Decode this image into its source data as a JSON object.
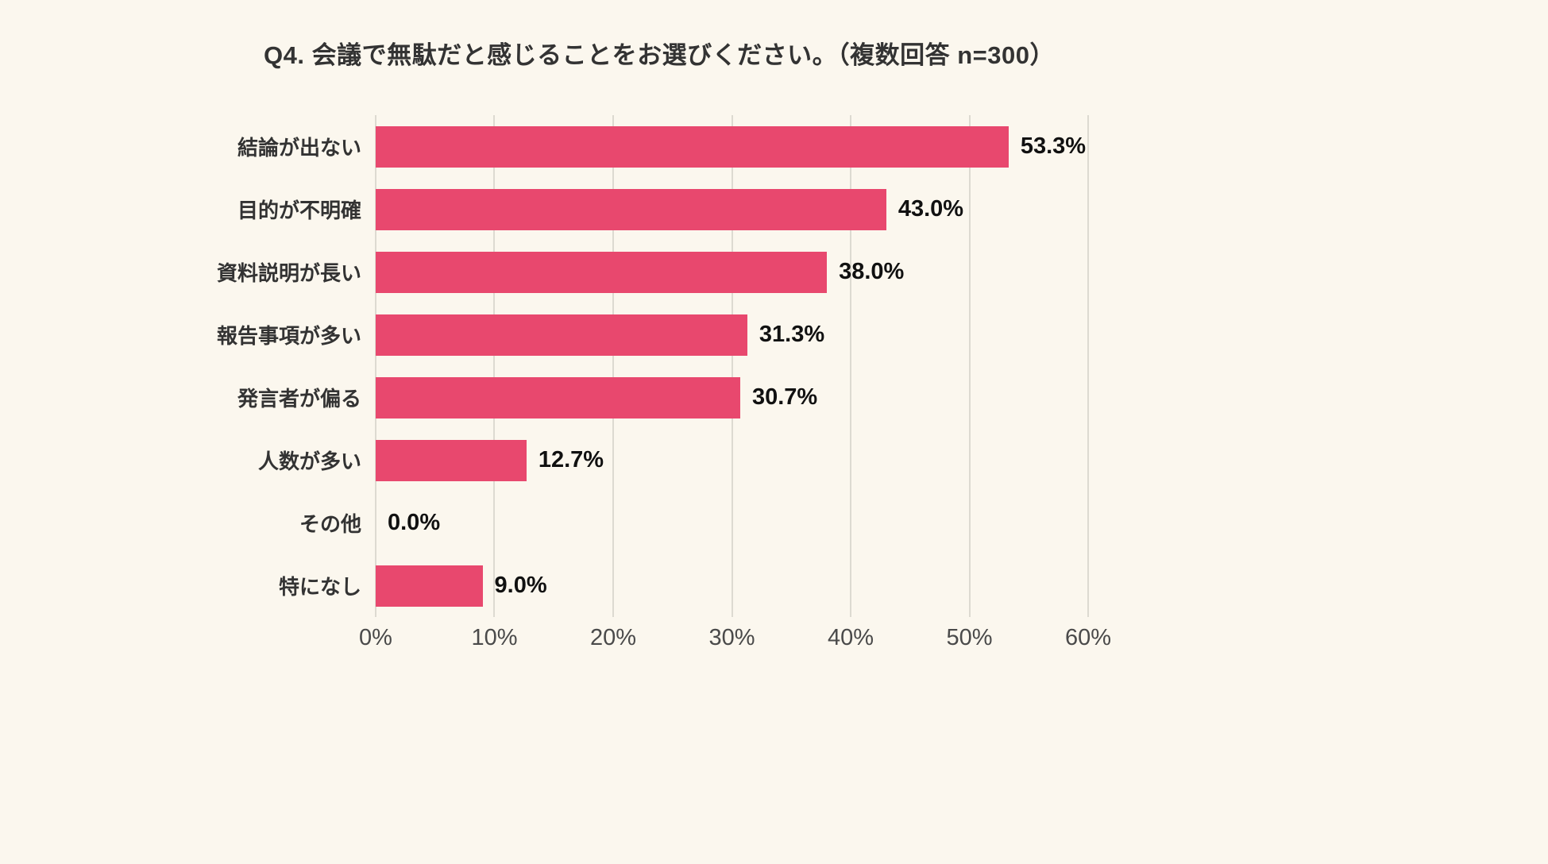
{
  "chart_data": {
    "type": "bar",
    "orientation": "horizontal",
    "title": "Q4. 会議で無駄だと感じることをお選びください。（複数回答 n=300）",
    "categories": [
      "結論が出ない",
      "目的が不明確",
      "資料説明が長い",
      "報告事項が多い",
      "発言者が偏る",
      "人数が多い",
      "その他",
      "特になし"
    ],
    "values": [
      53.3,
      43.0,
      38.0,
      31.3,
      30.7,
      12.7,
      0.0,
      9.0
    ],
    "value_labels": [
      "53.3%",
      "43.0%",
      "38.0%",
      "31.3%",
      "30.7%",
      "12.7%",
      "0.0%",
      "9.0%"
    ],
    "xlabel": "",
    "ylabel": "",
    "xlim": [
      0,
      60
    ],
    "x_ticks": [
      0,
      10,
      20,
      30,
      40,
      50,
      60
    ],
    "x_tick_labels": [
      "0%",
      "10%",
      "20%",
      "30%",
      "40%",
      "50%",
      "60%"
    ],
    "grid": true,
    "legend": false,
    "bar_color": "#E8486E",
    "background_color": "#FBF7EE",
    "gridline_color": "#DDDAD1"
  }
}
